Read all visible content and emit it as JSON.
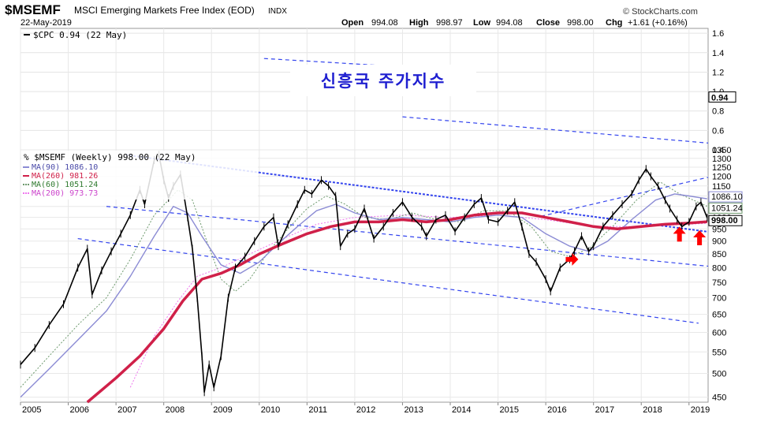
{
  "header": {
    "symbol": "$MSEMF",
    "name": "MSCI Emerging Markets Free Index (EOD)",
    "exchange": "INDX",
    "date": "22-May-2019",
    "watermark": "© StockCharts.com",
    "open_label": "Open",
    "open": "994.08",
    "high_label": "High",
    "high": "998.97",
    "low_label": "Low",
    "low": "994.08",
    "close_label": "Close",
    "close": "998.00",
    "chg_label": "Chg",
    "chg": "+1.61 (+0.16%)"
  },
  "overlay_title": "신흥국 주가지수",
  "colors": {
    "price": "#000000",
    "ma90": "#8b8bd4",
    "ma260": "#d02049",
    "ma60": "#6e9a6e",
    "ma200": "#ee77ee",
    "channel": "#3344ee",
    "arrow": "#ff0000"
  },
  "chart_data": [
    {
      "type": "line",
      "panel": "upper",
      "legend": "$CPC 0.94 (22 May)",
      "ytick_labels": [
        "1.6",
        "1.4",
        "1.2",
        "1.0",
        "0.8",
        "0.6",
        "0.4"
      ],
      "ylim": [
        0.4,
        1.65
      ],
      "last_value_label": "0.94",
      "series": []
    },
    {
      "type": "line",
      "panel": "main",
      "legend": [
        "% $MSEMF (Weekly) 998.00 (22 May)",
        "MA(90) 1086.10",
        "MA(260) 981.26",
        "MA(60) 1051.24",
        "MA(200) 973.73"
      ],
      "scale": "log",
      "ylim": [
        440,
        1350
      ],
      "ytick_labels": [
        "1350",
        "1300",
        "1250",
        "1200",
        "1150",
        "1100",
        "1050",
        "1000",
        "950",
        "900",
        "850",
        "800",
        "750",
        "700",
        "650",
        "600",
        "550",
        "500",
        "450"
      ],
      "value_labels": [
        "1086.10",
        "1051.24",
        "998.00"
      ],
      "xlim": [
        2005.0,
        2019.4
      ],
      "xtick_labels": [
        "2005",
        "2006",
        "2007",
        "2008",
        "2009",
        "2010",
        "2011",
        "2012",
        "2013",
        "2014",
        "2015",
        "2016",
        "2017",
        "2018",
        "2019"
      ],
      "series": [
        {
          "key": "price",
          "points": [
            [
              2005.0,
              520
            ],
            [
              2005.3,
              560
            ],
            [
              2005.6,
              620
            ],
            [
              2005.9,
              680
            ],
            [
              2006.2,
              800
            ],
            [
              2006.4,
              870
            ],
            [
              2006.5,
              710
            ],
            [
              2006.7,
              790
            ],
            [
              2006.9,
              860
            ],
            [
              2007.1,
              930
            ],
            [
              2007.3,
              1010
            ],
            [
              2007.5,
              1130
            ],
            [
              2007.6,
              1060
            ],
            [
              2007.8,
              1290
            ],
            [
              2007.9,
              1320
            ],
            [
              2008.0,
              1180
            ],
            [
              2008.1,
              1090
            ],
            [
              2008.2,
              1150
            ],
            [
              2008.35,
              1210
            ],
            [
              2008.5,
              1000
            ],
            [
              2008.6,
              870
            ],
            [
              2008.7,
              700
            ],
            [
              2008.8,
              540
            ],
            [
              2008.85,
              460
            ],
            [
              2008.95,
              520
            ],
            [
              2009.05,
              470
            ],
            [
              2009.2,
              540
            ],
            [
              2009.35,
              700
            ],
            [
              2009.5,
              800
            ],
            [
              2009.7,
              840
            ],
            [
              2009.9,
              900
            ],
            [
              2010.1,
              960
            ],
            [
              2010.3,
              1000
            ],
            [
              2010.4,
              880
            ],
            [
              2010.6,
              970
            ],
            [
              2010.8,
              1060
            ],
            [
              2010.95,
              1130
            ],
            [
              2011.1,
              1110
            ],
            [
              2011.3,
              1180
            ],
            [
              2011.45,
              1150
            ],
            [
              2011.6,
              1100
            ],
            [
              2011.7,
              880
            ],
            [
              2011.85,
              930
            ],
            [
              2012.0,
              950
            ],
            [
              2012.2,
              1040
            ],
            [
              2012.4,
              910
            ],
            [
              2012.6,
              960
            ],
            [
              2012.8,
              1020
            ],
            [
              2013.0,
              1070
            ],
            [
              2013.2,
              1000
            ],
            [
              2013.4,
              960
            ],
            [
              2013.5,
              920
            ],
            [
              2013.7,
              990
            ],
            [
              2013.9,
              1010
            ],
            [
              2014.1,
              940
            ],
            [
              2014.3,
              1000
            ],
            [
              2014.5,
              1060
            ],
            [
              2014.65,
              1090
            ],
            [
              2014.8,
              990
            ],
            [
              2015.0,
              980
            ],
            [
              2015.2,
              1030
            ],
            [
              2015.35,
              1070
            ],
            [
              2015.5,
              960
            ],
            [
              2015.65,
              850
            ],
            [
              2015.8,
              820
            ],
            [
              2016.0,
              760
            ],
            [
              2016.1,
              720
            ],
            [
              2016.3,
              800
            ],
            [
              2016.5,
              830
            ],
            [
              2016.6,
              860
            ],
            [
              2016.75,
              920
            ],
            [
              2016.9,
              860
            ],
            [
              2017.0,
              880
            ],
            [
              2017.2,
              960
            ],
            [
              2017.4,
              1010
            ],
            [
              2017.6,
              1060
            ],
            [
              2017.8,
              1110
            ],
            [
              2017.95,
              1180
            ],
            [
              2018.1,
              1240
            ],
            [
              2018.2,
              1200
            ],
            [
              2018.35,
              1150
            ],
            [
              2018.5,
              1080
            ],
            [
              2018.6,
              1040
            ],
            [
              2018.75,
              990
            ],
            [
              2018.85,
              960
            ],
            [
              2019.0,
              980
            ],
            [
              2019.15,
              1050
            ],
            [
              2019.25,
              1070
            ],
            [
              2019.38,
              998
            ]
          ]
        },
        {
          "key": "ma90",
          "points": [
            [
              2005.0,
              450
            ],
            [
              2005.6,
              510
            ],
            [
              2006.2,
              580
            ],
            [
              2006.8,
              660
            ],
            [
              2007.3,
              770
            ],
            [
              2007.8,
              920
            ],
            [
              2008.2,
              1050
            ],
            [
              2008.5,
              1020
            ],
            [
              2008.8,
              920
            ],
            [
              2009.2,
              810
            ],
            [
              2009.6,
              780
            ],
            [
              2010.0,
              820
            ],
            [
              2010.4,
              890
            ],
            [
              2010.8,
              960
            ],
            [
              2011.2,
              1030
            ],
            [
              2011.6,
              1060
            ],
            [
              2012.0,
              1020
            ],
            [
              2012.5,
              990
            ],
            [
              2013.0,
              1000
            ],
            [
              2013.5,
              990
            ],
            [
              2014.0,
              980
            ],
            [
              2014.5,
              1000
            ],
            [
              2015.0,
              1010
            ],
            [
              2015.5,
              1000
            ],
            [
              2016.0,
              930
            ],
            [
              2016.5,
              880
            ],
            [
              2016.9,
              860
            ],
            [
              2017.3,
              900
            ],
            [
              2017.8,
              990
            ],
            [
              2018.3,
              1080
            ],
            [
              2018.7,
              1110
            ],
            [
              2019.0,
              1100
            ],
            [
              2019.38,
              1086
            ]
          ]
        },
        {
          "key": "ma260",
          "points": [
            [
              2006.4,
              440
            ],
            [
              2007.0,
              490
            ],
            [
              2007.5,
              540
            ],
            [
              2008.0,
              610
            ],
            [
              2008.4,
              690
            ],
            [
              2008.8,
              760
            ],
            [
              2009.2,
              780
            ],
            [
              2009.6,
              810
            ],
            [
              2010.0,
              850
            ],
            [
              2010.5,
              890
            ],
            [
              2011.0,
              930
            ],
            [
              2011.5,
              960
            ],
            [
              2012.0,
              980
            ],
            [
              2012.5,
              980
            ],
            [
              2013.0,
              990
            ],
            [
              2013.5,
              980
            ],
            [
              2014.0,
              990
            ],
            [
              2014.5,
              1010
            ],
            [
              2015.0,
              1020
            ],
            [
              2015.5,
              1020
            ],
            [
              2016.0,
              1000
            ],
            [
              2016.5,
              980
            ],
            [
              2017.0,
              960
            ],
            [
              2017.5,
              950
            ],
            [
              2018.0,
              960
            ],
            [
              2018.5,
              970
            ],
            [
              2019.0,
              975
            ],
            [
              2019.38,
              981
            ]
          ]
        },
        {
          "key": "ma60",
          "points": [
            [
              2005.0,
              470
            ],
            [
              2005.6,
              540
            ],
            [
              2006.2,
              620
            ],
            [
              2006.8,
              700
            ],
            [
              2007.3,
              830
            ],
            [
              2007.8,
              1010
            ],
            [
              2008.3,
              1130
            ],
            [
              2008.6,
              1080
            ],
            [
              2008.9,
              900
            ],
            [
              2009.2,
              760
            ],
            [
              2009.5,
              720
            ],
            [
              2009.8,
              760
            ],
            [
              2010.2,
              860
            ],
            [
              2010.6,
              950
            ],
            [
              2011.0,
              1040
            ],
            [
              2011.4,
              1100
            ],
            [
              2011.8,
              1060
            ],
            [
              2012.2,
              1000
            ],
            [
              2012.7,
              990
            ],
            [
              2013.2,
              1020
            ],
            [
              2013.7,
              990
            ],
            [
              2014.2,
              980
            ],
            [
              2014.7,
              1030
            ],
            [
              2015.2,
              1030
            ],
            [
              2015.7,
              960
            ],
            [
              2016.1,
              860
            ],
            [
              2016.5,
              840
            ],
            [
              2016.9,
              870
            ],
            [
              2017.4,
              960
            ],
            [
              2017.9,
              1080
            ],
            [
              2018.4,
              1170
            ],
            [
              2018.8,
              1110
            ],
            [
              2019.38,
              1051
            ]
          ]
        },
        {
          "key": "ma200",
          "points": [
            [
              2007.3,
              470
            ],
            [
              2007.8,
              590
            ],
            [
              2008.3,
              690
            ],
            [
              2008.7,
              770
            ],
            [
              2009.2,
              800
            ],
            [
              2009.8,
              850
            ],
            [
              2010.5,
              910
            ],
            [
              2011.2,
              970
            ],
            [
              2012.0,
              1000
            ],
            [
              2013.0,
              1010
            ],
            [
              2014.0,
              1000
            ],
            [
              2015.0,
              1010
            ],
            [
              2016.0,
              990
            ],
            [
              2017.0,
              960
            ],
            [
              2018.0,
              960
            ],
            [
              2019.38,
              974
            ]
          ]
        }
      ],
      "trend_channels": [
        {
          "from": [
            2007.2,
            1320
          ],
          "to": [
            2019.4,
            938
          ],
          "style": "dotted"
        },
        {
          "from": [
            2006.8,
            1050
          ],
          "to": [
            2019.4,
            805
          ],
          "style": "dashed"
        },
        {
          "from": [
            2006.2,
            910
          ],
          "to": [
            2019.2,
            625
          ],
          "style": "dashed"
        },
        {
          "from": [
            2015.9,
            1005
          ],
          "to": [
            2019.4,
            1195
          ],
          "style": "dashed"
        }
      ],
      "arrows": [
        {
          "x": 2016.55,
          "y": 830,
          "direction": "right"
        },
        {
          "x": 2018.8,
          "y": 930,
          "direction": "up"
        },
        {
          "x": 2019.22,
          "y": 915,
          "direction": "up"
        }
      ]
    }
  ]
}
